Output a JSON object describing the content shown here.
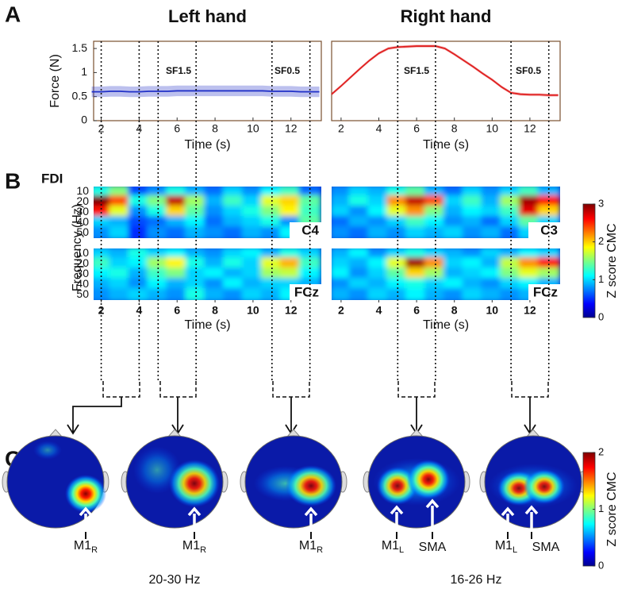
{
  "panels": {
    "A": "A",
    "B": "B",
    "C": "C"
  },
  "chart_data": [
    {
      "type": "line",
      "title": "Left hand",
      "ylabel": "Force (N)",
      "xlabel": "Time (s)",
      "color": "#2030c8",
      "x": [
        1.5,
        2,
        2.5,
        3,
        3.5,
        4,
        4.5,
        5,
        5.5,
        6,
        6.5,
        7,
        7.5,
        8,
        8.5,
        9,
        9.5,
        10,
        10.5,
        11,
        11.5,
        12,
        12.5,
        13,
        13.5
      ],
      "values": [
        0.6,
        0.6,
        0.61,
        0.61,
        0.6,
        0.6,
        0.61,
        0.61,
        0.61,
        0.62,
        0.62,
        0.62,
        0.62,
        0.62,
        0.62,
        0.62,
        0.62,
        0.62,
        0.62,
        0.61,
        0.61,
        0.61,
        0.6,
        0.6,
        0.6
      ],
      "error": 0.11,
      "xlim": [
        1.6,
        13.6
      ],
      "ylim": [
        0,
        1.65
      ],
      "xticks": [
        2,
        4,
        6,
        8,
        10,
        12
      ],
      "yticks": [
        0,
        0.5,
        1,
        1.5
      ],
      "markers": [
        2,
        4,
        5,
        7,
        11,
        13
      ],
      "annotations": [
        "SF1.5",
        "SF0.5"
      ]
    },
    {
      "type": "line",
      "title": "Right hand",
      "xlabel": "Time (s)",
      "color": "#e02020",
      "x": [
        1.5,
        2,
        2.5,
        3,
        3.5,
        4,
        4.5,
        5,
        5.5,
        6,
        6.5,
        7,
        7.5,
        8,
        8.5,
        9,
        9.5,
        10,
        10.5,
        11,
        11.5,
        12,
        12.5,
        13,
        13.5
      ],
      "values": [
        0.55,
        0.72,
        0.9,
        1.08,
        1.25,
        1.4,
        1.5,
        1.53,
        1.54,
        1.55,
        1.55,
        1.55,
        1.5,
        1.38,
        1.25,
        1.12,
        0.98,
        0.85,
        0.7,
        0.58,
        0.55,
        0.54,
        0.54,
        0.53,
        0.53
      ],
      "error": 0.03,
      "xlim": [
        1.5,
        13.6
      ],
      "ylim": [
        0,
        1.65
      ],
      "xticks": [
        2,
        4,
        6,
        8,
        10,
        12
      ],
      "markers": [
        5,
        7,
        11,
        13
      ],
      "annotations": [
        "SF1.5",
        "SF0.5"
      ]
    },
    {
      "type": "heatmap",
      "label": "C4",
      "xlim": [
        1.6,
        13.6
      ],
      "ylim": [
        5,
        55
      ],
      "yticks": [
        10,
        20,
        30,
        40,
        50
      ],
      "x": [
        2,
        3,
        4,
        5,
        6,
        7,
        8,
        9,
        10,
        11,
        12,
        13
      ],
      "y": [
        10,
        20,
        30,
        40,
        50
      ],
      "values": [
        [
          1.2,
          1.5,
          0.6,
          0.8,
          1.2,
          0.9,
          0.7,
          1.0,
          0.8,
          1.1,
          1.3,
          0.7
        ],
        [
          3,
          2.4,
          1.2,
          1.5,
          2.8,
          1.6,
          0.9,
          1.3,
          1.0,
          1.8,
          2.0,
          1.4
        ],
        [
          2.6,
          1.8,
          0.8,
          1.2,
          2.0,
          1.4,
          0.8,
          1.0,
          1.2,
          1.5,
          1.9,
          1.3
        ],
        [
          1.0,
          0.9,
          0.6,
          0.7,
          0.9,
          1.1,
          0.7,
          0.9,
          1.0,
          1.2,
          0.8,
          1.4
        ],
        [
          0.8,
          1.0,
          0.5,
          0.8,
          0.7,
          0.9,
          0.8,
          0.7,
          0.9,
          0.8,
          1.1,
          0.9
        ]
      ]
    },
    {
      "type": "heatmap",
      "label": "C3",
      "xlim": [
        1.5,
        13.6
      ],
      "ylim": [
        5,
        55
      ],
      "x": [
        2,
        3,
        4,
        5,
        6,
        7,
        8,
        9,
        10,
        11,
        12,
        13
      ],
      "y": [
        10,
        20,
        30,
        40,
        50
      ],
      "values": [
        [
          0.8,
          1.0,
          0.9,
          1.2,
          1.4,
          0.9,
          0.7,
          1.0,
          0.8,
          1.0,
          1.3,
          0.9
        ],
        [
          0.9,
          1.2,
          1.0,
          2.2,
          2.8,
          2.4,
          1.0,
          1.3,
          0.9,
          1.6,
          2.9,
          2.6
        ],
        [
          1.0,
          0.8,
          1.1,
          1.8,
          2.2,
          1.5,
          0.9,
          1.1,
          1.0,
          1.3,
          2.7,
          2.0
        ],
        [
          0.7,
          0.9,
          0.8,
          1.0,
          1.3,
          1.1,
          0.8,
          0.9,
          0.7,
          1.0,
          1.4,
          1.0
        ],
        [
          0.8,
          0.7,
          0.9,
          0.8,
          1.0,
          0.9,
          1.0,
          0.8,
          0.9,
          0.7,
          1.0,
          0.8
        ]
      ]
    },
    {
      "type": "heatmap",
      "label": "FCz",
      "xlabel": "Time (s)",
      "xlim": [
        1.6,
        13.6
      ],
      "ylim": [
        5,
        55
      ],
      "yticks": [
        10,
        20,
        30,
        40,
        50
      ],
      "xticks": [
        2,
        4,
        6,
        8,
        10,
        12
      ],
      "x": [
        2,
        3,
        4,
        5,
        6,
        7,
        8,
        9,
        10,
        11,
        12,
        13
      ],
      "y": [
        10,
        20,
        30,
        40,
        50
      ],
      "values": [
        [
          1.0,
          0.9,
          1.2,
          1.0,
          1.1,
          0.9,
          0.8,
          1.0,
          1.1,
          0.9,
          1.2,
          1.0
        ],
        [
          1.3,
          1.0,
          1.1,
          1.6,
          1.9,
          1.2,
          0.9,
          1.2,
          1.0,
          1.8,
          2.1,
          1.3
        ],
        [
          1.1,
          1.2,
          0.9,
          1.3,
          1.5,
          1.0,
          1.1,
          0.9,
          1.0,
          1.6,
          1.7,
          1.1
        ],
        [
          0.9,
          1.0,
          0.8,
          1.1,
          0.9,
          1.0,
          0.8,
          1.1,
          0.9,
          1.0,
          1.0,
          0.9
        ],
        [
          0.8,
          0.9,
          1.0,
          0.9,
          0.8,
          1.2,
          0.9,
          0.8,
          1.0,
          0.9,
          1.1,
          1.0
        ]
      ]
    },
    {
      "type": "heatmap",
      "label": "FCz",
      "xlabel": "Time (s)",
      "xlim": [
        1.5,
        13.6
      ],
      "ylim": [
        5,
        55
      ],
      "xticks": [
        2,
        4,
        6,
        8,
        10,
        12
      ],
      "x": [
        2,
        3,
        4,
        5,
        6,
        7,
        8,
        9,
        10,
        11,
        12,
        13
      ],
      "y": [
        10,
        20,
        30,
        40,
        50
      ],
      "values": [
        [
          0.9,
          1.1,
          0.8,
          1.0,
          1.2,
          1.0,
          0.9,
          0.8,
          1.0,
          0.9,
          1.1,
          1.0
        ],
        [
          1.0,
          0.9,
          1.1,
          1.8,
          2.9,
          2.2,
          1.0,
          1.1,
          0.9,
          1.7,
          2.2,
          2.6
        ],
        [
          1.1,
          0.8,
          1.0,
          1.4,
          2.0,
          1.6,
          0.9,
          1.0,
          1.1,
          1.5,
          1.8,
          1.6
        ],
        [
          0.8,
          1.0,
          0.9,
          1.1,
          1.2,
          1.0,
          1.1,
          0.9,
          0.8,
          1.0,
          1.1,
          0.9
        ],
        [
          0.9,
          0.8,
          1.0,
          0.9,
          1.1,
          0.9,
          0.8,
          1.0,
          0.9,
          0.8,
          0.9,
          1.0
        ]
      ]
    }
  ],
  "spectrogram": {
    "muscle": "FDI",
    "ylabel": "Frequency (Hz)",
    "colorbar_label": "Z score CMC",
    "clim": [
      0,
      3
    ],
    "cticks": [
      0,
      1,
      2,
      3
    ]
  },
  "topomaps": {
    "maps": [
      {
        "labels": [
          {
            "text": "M1",
            "sub": "R"
          }
        ]
      },
      {
        "labels": [
          {
            "text": "M1",
            "sub": "R"
          }
        ]
      },
      {
        "labels": [
          {
            "text": "M1",
            "sub": "R"
          }
        ]
      },
      {
        "labels": [
          {
            "text": "M1",
            "sub": "L"
          },
          {
            "text": "SMA"
          }
        ]
      },
      {
        "labels": [
          {
            "text": "M1",
            "sub": "L"
          },
          {
            "text": "SMA"
          }
        ]
      }
    ],
    "bands": [
      "20-30 Hz",
      "16-26 Hz"
    ],
    "colorbar_label": "Z score CMC",
    "clim": [
      0,
      2
    ],
    "cticks": [
      0,
      1,
      2
    ]
  }
}
